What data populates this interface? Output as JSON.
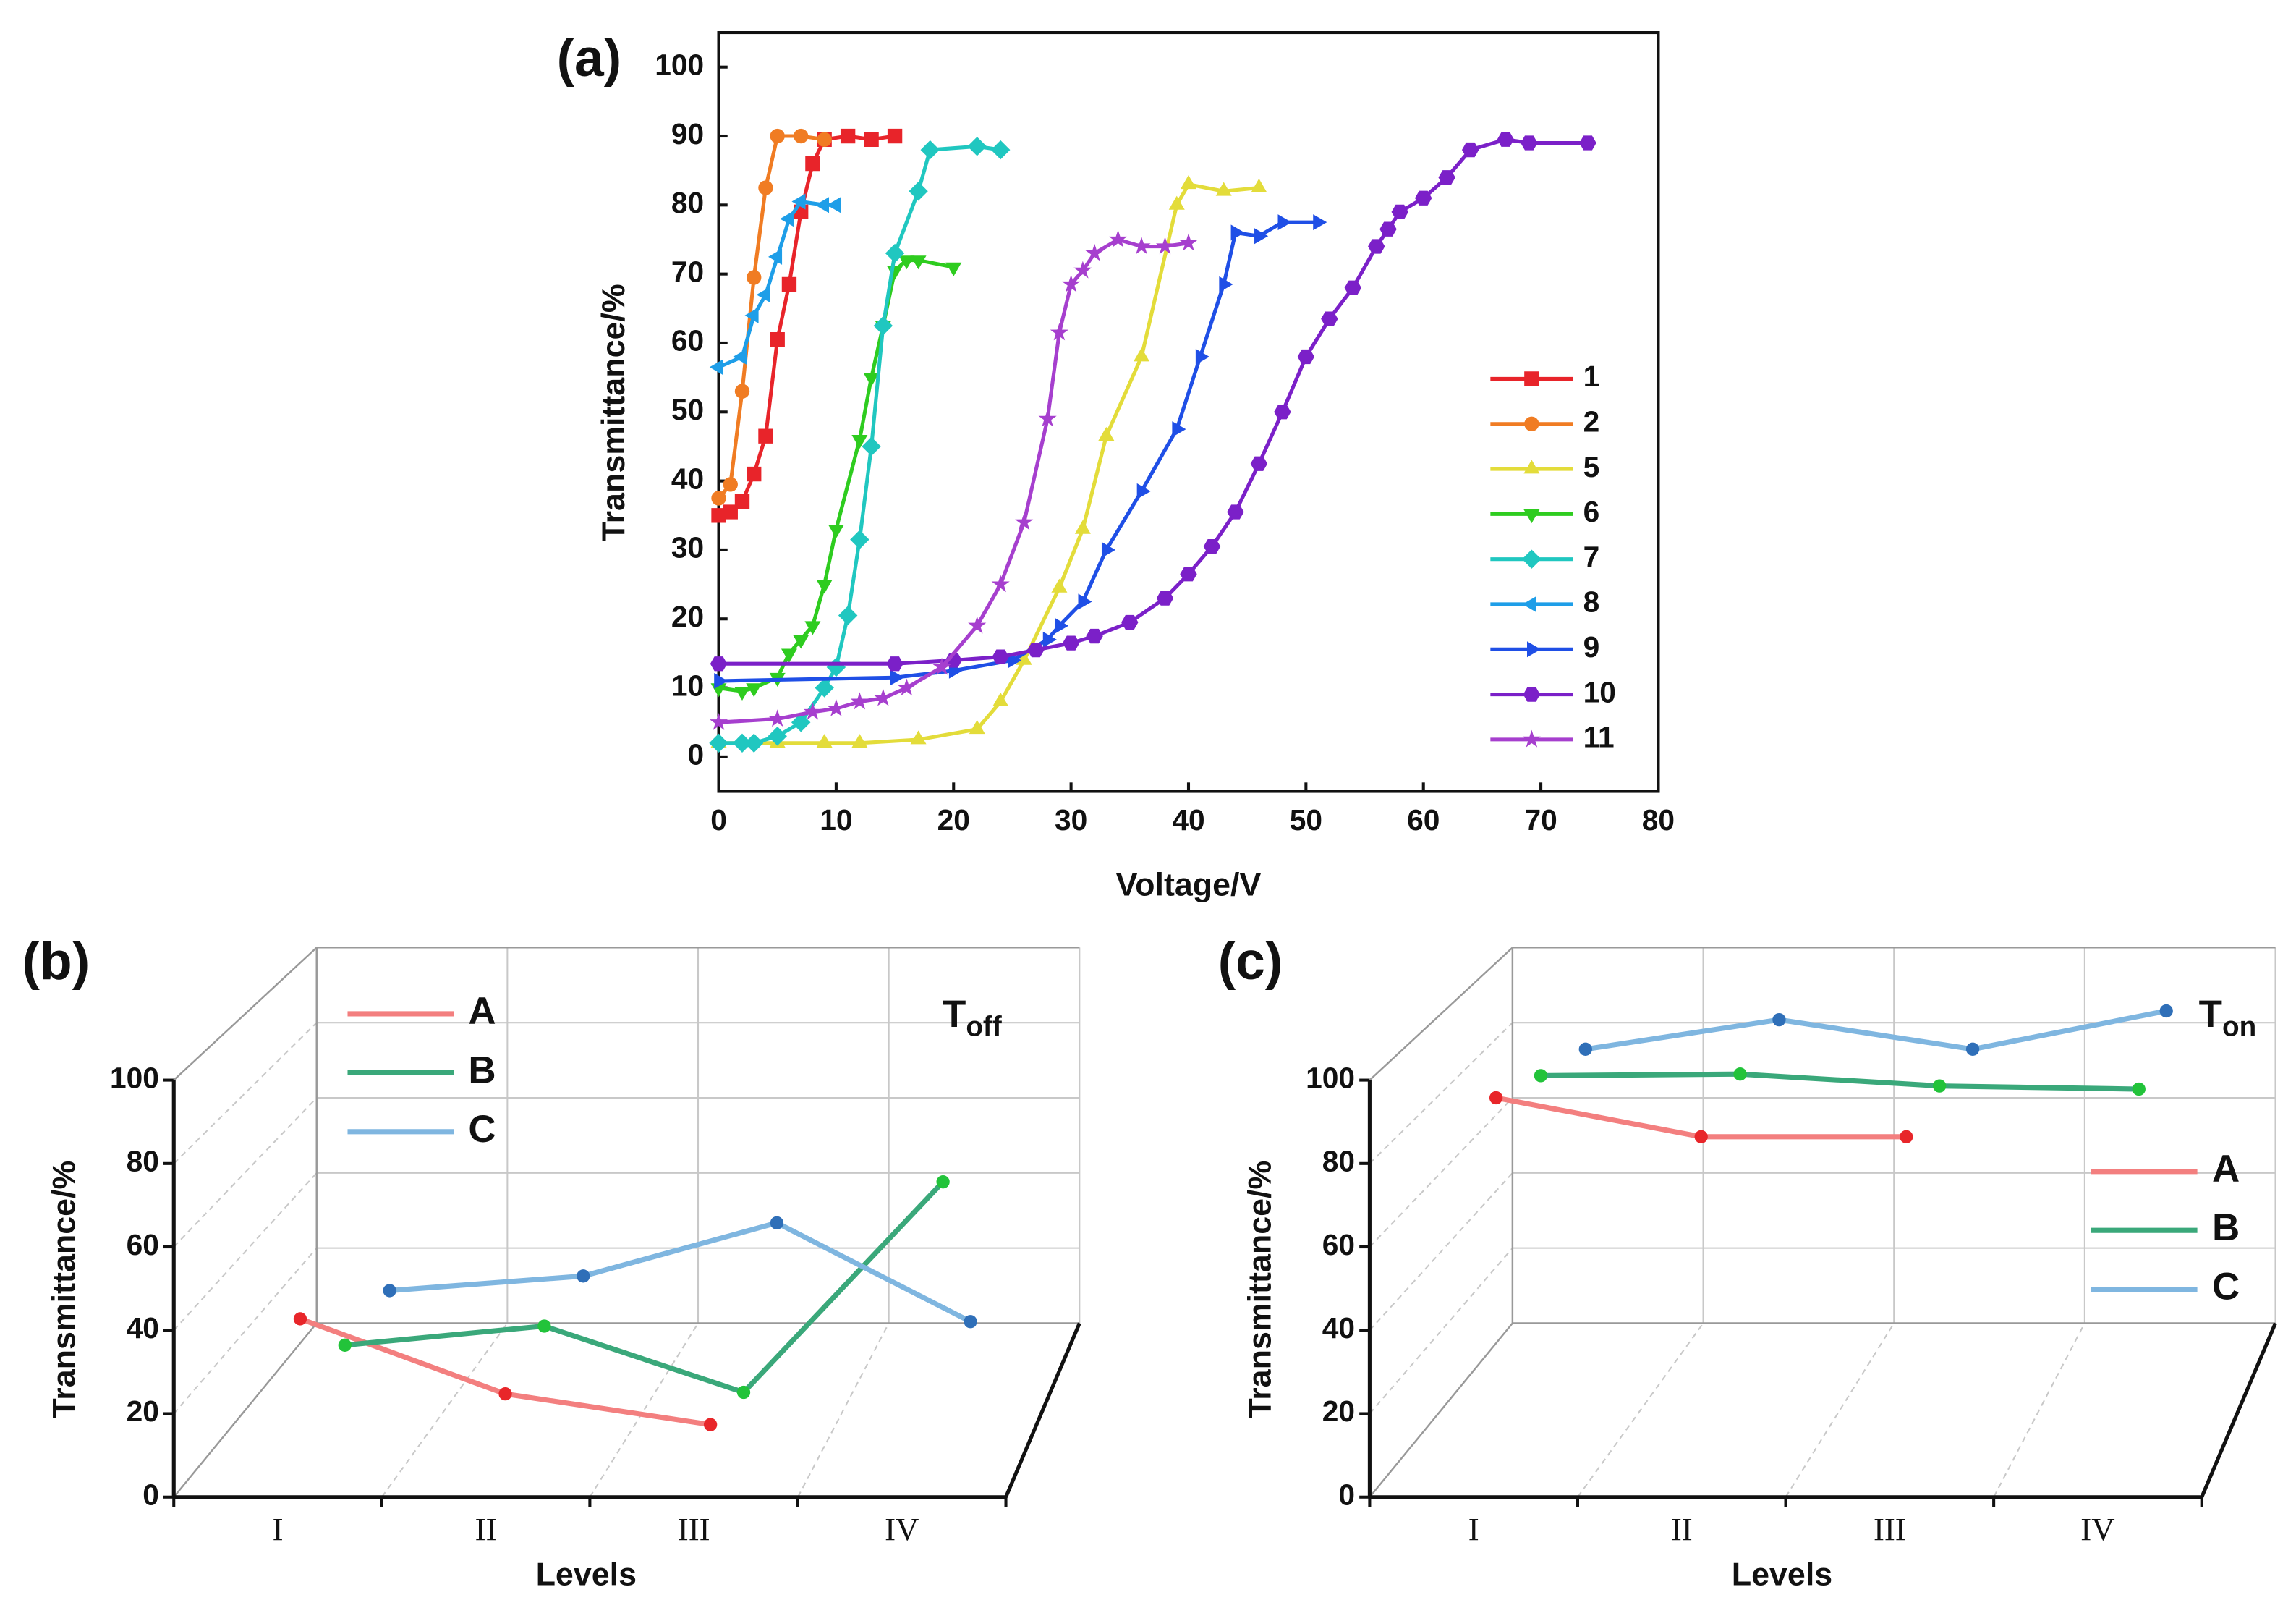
{
  "chart_data": [
    {
      "type": "line",
      "label": "(a)",
      "xlabel": "Voltage/V",
      "ylabel": "Transmittance/%",
      "xlim": [
        0,
        80
      ],
      "ylim": [
        -5,
        105
      ],
      "xticks": [
        0,
        10,
        20,
        30,
        40,
        50,
        60,
        70,
        80
      ],
      "yticks": [
        0,
        10,
        20,
        30,
        40,
        50,
        60,
        70,
        80,
        90,
        100
      ],
      "legend": "lower right",
      "series": [
        {
          "name": "1",
          "color": "#e8242a",
          "marker": "square",
          "x": [
            0,
            1,
            2,
            3,
            4,
            5,
            6,
            7,
            8,
            9,
            11,
            13,
            15
          ],
          "values": [
            35,
            35.5,
            37,
            41,
            46.5,
            60.5,
            68.5,
            79,
            86,
            89.5,
            90,
            89.5,
            90
          ]
        },
        {
          "name": "2",
          "color": "#f07c23",
          "marker": "circle",
          "x": [
            0,
            1,
            2,
            3,
            4,
            5,
            7,
            9
          ],
          "values": [
            37.5,
            39.5,
            53,
            69.5,
            82.5,
            90,
            90,
            89.5
          ]
        },
        {
          "name": "5",
          "color": "#e3dc3a",
          "marker": "triangle-up",
          "x": [
            0,
            5,
            9,
            12,
            17,
            22,
            24,
            26,
            29,
            31,
            33,
            36,
            39,
            40,
            43,
            46
          ],
          "values": [
            2,
            2,
            2,
            2,
            2.5,
            4,
            8,
            14,
            24.5,
            33,
            46.5,
            58,
            80,
            83,
            82,
            82.5
          ]
        },
        {
          "name": "6",
          "color": "#2ecc1f",
          "marker": "triangle-down",
          "x": [
            0,
            2,
            3,
            5,
            6,
            7,
            8,
            9,
            10,
            12,
            13,
            14,
            15,
            16,
            17,
            20
          ],
          "values": [
            10,
            9.5,
            10,
            11.5,
            15,
            17,
            19,
            25,
            33,
            46,
            55,
            62.5,
            70.5,
            72,
            72,
            71
          ]
        },
        {
          "name": "7",
          "color": "#20c7c0",
          "marker": "diamond",
          "x": [
            0,
            2,
            3,
            5,
            7,
            9,
            10,
            11,
            12,
            13,
            14,
            15,
            17,
            18,
            22,
            24
          ],
          "values": [
            2,
            2,
            2,
            3,
            5,
            10,
            13,
            20.5,
            31.5,
            45,
            62.5,
            73,
            82,
            88,
            88.5,
            88
          ]
        },
        {
          "name": "8",
          "color": "#1e9ee8",
          "marker": "triangle-left",
          "x": [
            0,
            2,
            3,
            4,
            5,
            6,
            7,
            9,
            10
          ],
          "values": [
            56.5,
            58,
            64,
            67,
            72.5,
            78,
            80.5,
            80,
            80
          ]
        },
        {
          "name": "9",
          "color": "#1f4fe6",
          "marker": "triangle-right",
          "x": [
            0,
            15,
            20,
            25,
            28,
            29,
            31,
            33,
            36,
            39,
            41,
            43,
            44,
            46,
            48,
            51
          ],
          "values": [
            11,
            11.5,
            12.5,
            14,
            17,
            19,
            22.5,
            30,
            38.5,
            47.5,
            58,
            68.5,
            76,
            75.5,
            77.5,
            77.5
          ]
        },
        {
          "name": "10",
          "color": "#7b20c8",
          "marker": "hexagon",
          "x": [
            0,
            15,
            20,
            24,
            27,
            30,
            32,
            35,
            38,
            40,
            42,
            44,
            46,
            48,
            50,
            52,
            54,
            56,
            57,
            58,
            60,
            62,
            64,
            67,
            69,
            74
          ],
          "values": [
            13.5,
            13.5,
            14,
            14.5,
            15.5,
            16.5,
            17.5,
            19.5,
            23,
            26.5,
            30.5,
            35.5,
            42.5,
            50,
            58,
            63.5,
            68,
            74,
            76.5,
            79,
            81,
            84,
            88,
            89.5,
            89,
            89
          ]
        },
        {
          "name": "11",
          "color": "#a63fce",
          "marker": "star",
          "x": [
            0,
            5,
            8,
            10,
            12,
            14,
            16,
            19,
            22,
            24,
            26,
            28,
            29,
            30,
            31,
            32,
            34,
            36,
            38,
            40
          ],
          "values": [
            5,
            5.5,
            6.5,
            7,
            8,
            8.5,
            10,
            13,
            19,
            25,
            34,
            49,
            61.5,
            68.5,
            70.5,
            73,
            75,
            74,
            74,
            74.5
          ]
        }
      ]
    },
    {
      "type": "line3d",
      "label": "(b)",
      "annotation": {
        "text": "T",
        "sub": "off"
      },
      "xlabel": "Levels",
      "ylabel": "Transmittance/%",
      "categories": [
        "I",
        "II",
        "III",
        "IV"
      ],
      "ylim": [
        0,
        100
      ],
      "yticks": [
        0,
        20,
        40,
        60,
        80,
        100
      ],
      "legend": "upper left",
      "series": [
        {
          "name": "A",
          "color": "#f37f7f",
          "marker_color": "#e8262a",
          "values": [
            36.4,
            18.1,
            10.6,
            null
          ]
        },
        {
          "name": "B",
          "color": "#3aa87a",
          "marker_color": "#22c33a",
          "values": [
            16.4,
            21.2,
            4.5,
            57.6
          ]
        },
        {
          "name": "C",
          "color": "#7fb6e0",
          "marker_color": "#2f6fb8",
          "values": [
            16.1,
            19.9,
            33.8,
            8.0
          ]
        }
      ]
    },
    {
      "type": "line3d",
      "label": "(c)",
      "annotation": {
        "text": "T",
        "sub": "on"
      },
      "xlabel": "Levels",
      "ylabel": "Transmittance/%",
      "categories": [
        "I",
        "II",
        "III",
        "IV"
      ],
      "ylim": [
        0,
        100
      ],
      "yticks": [
        0,
        20,
        40,
        60,
        80,
        100
      ],
      "legend": "center right",
      "series": [
        {
          "name": "A",
          "color": "#f37f7f",
          "marker_color": "#e8262a",
          "values": [
            90.3,
            80.8,
            80.8,
            null
          ]
        },
        {
          "name": "B",
          "color": "#3aa87a",
          "marker_color": "#22c33a",
          "values": [
            84.4,
            84.8,
            81.8,
            81.0
          ]
        },
        {
          "name": "C",
          "color": "#7fb6e0",
          "marker_color": "#2f6fb8",
          "values": [
            79.2,
            86.9,
            79.2,
            89.2
          ]
        }
      ]
    }
  ]
}
